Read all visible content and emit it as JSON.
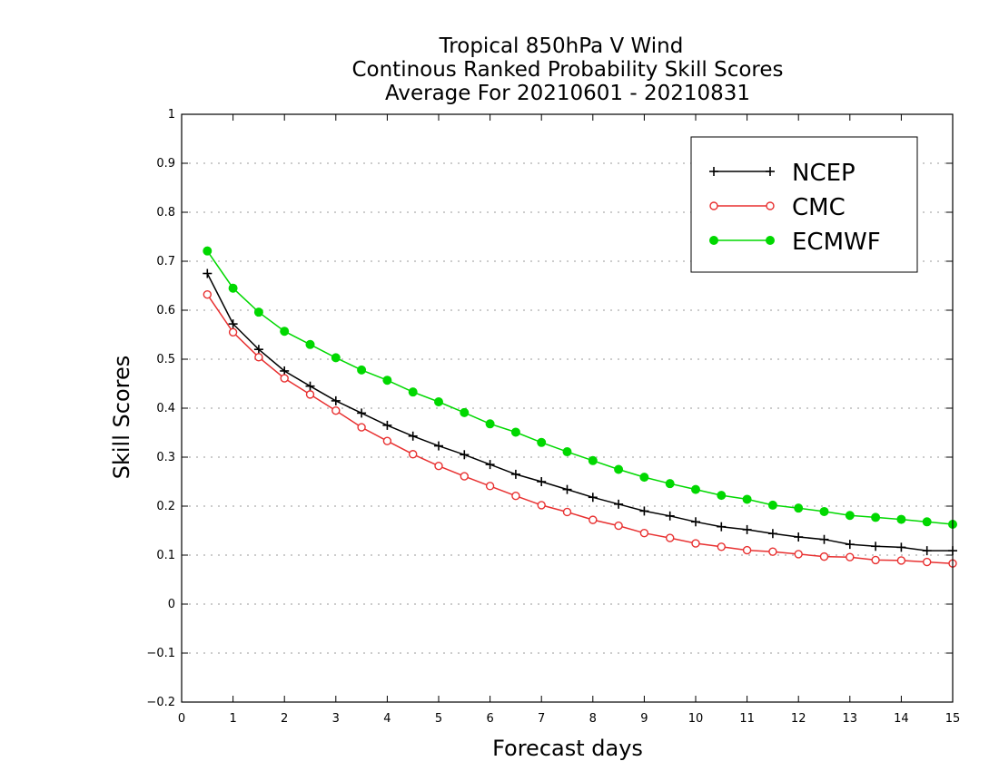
{
  "chart_data": {
    "type": "line",
    "title_lines": [
      "Tropical 850hPa V Wind",
      "Continous Ranked Probability Skill Scores",
      "Average For 20210601 - 20210831"
    ],
    "xlabel": "Forecast days",
    "ylabel": "Skill Scores",
    "xlim": [
      0,
      15
    ],
    "ylim": [
      -0.2,
      1
    ],
    "x_ticks": [
      0,
      1,
      2,
      3,
      4,
      5,
      6,
      7,
      8,
      9,
      10,
      11,
      12,
      13,
      14,
      15
    ],
    "x_tick_labels": [
      "0",
      "1",
      "2",
      "3",
      "4",
      "5",
      "6",
      "7",
      "8",
      "9",
      "10",
      "11",
      "12",
      "13",
      "14",
      "15"
    ],
    "y_ticks": [
      -0.2,
      -0.1,
      0,
      0.1,
      0.2,
      0.3,
      0.4,
      0.5,
      0.6,
      0.7,
      0.8,
      0.9,
      1
    ],
    "y_tick_labels": [
      "−0.2",
      "−0.1",
      "0",
      "0.1",
      "0.2",
      "0.3",
      "0.4",
      "0.5",
      "0.6",
      "0.7",
      "0.8",
      "0.9",
      "1"
    ],
    "grid": "horizontal-dotted",
    "legend_position": "top-right",
    "x": [
      0.5,
      1,
      1.5,
      2,
      2.5,
      3,
      3.5,
      4,
      4.5,
      5,
      5.5,
      6,
      6.5,
      7,
      7.5,
      8,
      8.5,
      9,
      9.5,
      10,
      10.5,
      11,
      11.5,
      12,
      12.5,
      13,
      13.5,
      14,
      14.5,
      15
    ],
    "series": [
      {
        "name": "NCEP",
        "color": "#000000",
        "marker": "plus",
        "values": [
          0.675,
          0.572,
          0.52,
          0.476,
          0.445,
          0.415,
          0.39,
          0.365,
          0.343,
          0.323,
          0.305,
          0.285,
          0.265,
          0.25,
          0.234,
          0.218,
          0.204,
          0.19,
          0.18,
          0.168,
          0.158,
          0.152,
          0.144,
          0.137,
          0.132,
          0.122,
          0.118,
          0.116,
          0.109,
          0.109
        ]
      },
      {
        "name": "CMC",
        "color": "#e83030",
        "marker": "open-circle",
        "values": [
          0.632,
          0.555,
          0.504,
          0.461,
          0.428,
          0.395,
          0.361,
          0.333,
          0.306,
          0.282,
          0.261,
          0.241,
          0.221,
          0.202,
          0.188,
          0.172,
          0.16,
          0.145,
          0.135,
          0.124,
          0.117,
          0.11,
          0.107,
          0.102,
          0.097,
          0.096,
          0.09,
          0.089,
          0.086,
          0.083
        ]
      },
      {
        "name": "ECMWF",
        "color": "#00d800",
        "marker": "filled-circle",
        "values": [
          0.721,
          0.645,
          0.596,
          0.557,
          0.53,
          0.503,
          0.478,
          0.457,
          0.433,
          0.413,
          0.391,
          0.368,
          0.351,
          0.33,
          0.311,
          0.293,
          0.275,
          0.259,
          0.246,
          0.234,
          0.222,
          0.214,
          0.202,
          0.196,
          0.189,
          0.181,
          0.177,
          0.173,
          0.168,
          0.163
        ]
      }
    ]
  }
}
